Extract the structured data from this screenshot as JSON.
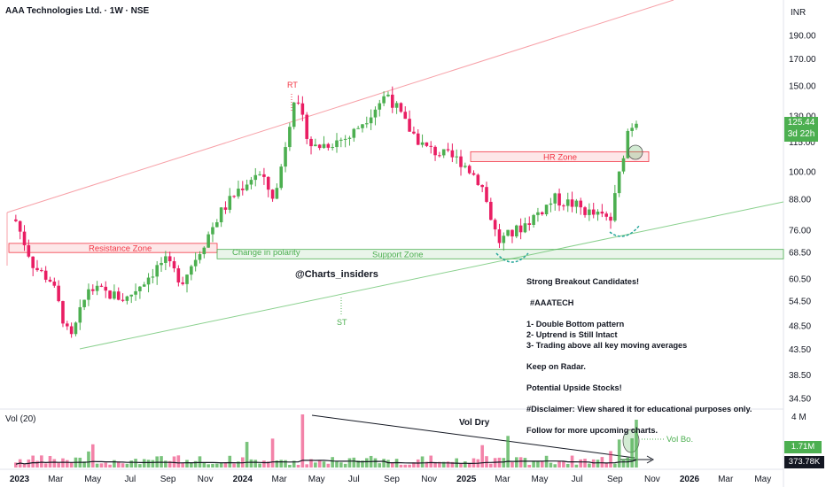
{
  "header": {
    "title": "AAA Technologies Ltd. · 1W · NSE",
    "currency": "INR",
    "volume_label": "Vol (20)"
  },
  "price_tag": {
    "price": "125.44",
    "countdown": "3d 22h"
  },
  "volume_tags": {
    "last": "1.71M",
    "average": "373.78K"
  },
  "colors": {
    "up": "#4caf50",
    "down": "#e91e63",
    "resistance": "#f23645",
    "support": "#4caf50"
  },
  "chart_data": {
    "type": "candlestick",
    "title": "AAA Technologies Ltd. · 1W · NSE",
    "y_axis_ticks": [
      190.0,
      170.0,
      150.0,
      130.0,
      115.0,
      100.0,
      88.0,
      76.0,
      68.5,
      60.5,
      54.5,
      48.5,
      43.5,
      38.5,
      34.5
    ],
    "y_scale": "log",
    "x_axis_ticks": [
      "2023",
      "Mar",
      "May",
      "Jul",
      "Sep",
      "Nov",
      "2024",
      "Mar",
      "May",
      "Jul",
      "Sep",
      "Nov",
      "2025",
      "Mar",
      "May",
      "Jul",
      "Sep",
      "Nov",
      "2026",
      "Mar",
      "May"
    ],
    "volume_axis_ticks": [
      "4 M"
    ],
    "approx_price_path": [
      {
        "date": "2023-01",
        "price": 80
      },
      {
        "date": "2023-02",
        "price": 64
      },
      {
        "date": "2023-03",
        "price": 60
      },
      {
        "date": "2023-04",
        "price": 45
      },
      {
        "date": "2023-05",
        "price": 58
      },
      {
        "date": "2023-07",
        "price": 55
      },
      {
        "date": "2023-09",
        "price": 66
      },
      {
        "date": "2023-10",
        "price": 60
      },
      {
        "date": "2023-11",
        "price": 70
      },
      {
        "date": "2023-12",
        "price": 82
      },
      {
        "date": "2024-01",
        "price": 92
      },
      {
        "date": "2024-02",
        "price": 100
      },
      {
        "date": "2024-03",
        "price": 88
      },
      {
        "date": "2024-04",
        "price": 142
      },
      {
        "date": "2024-05",
        "price": 112
      },
      {
        "date": "2024-07",
        "price": 118
      },
      {
        "date": "2024-09",
        "price": 145
      },
      {
        "date": "2024-10",
        "price": 125
      },
      {
        "date": "2024-11",
        "price": 112
      },
      {
        "date": "2025-01",
        "price": 105
      },
      {
        "date": "2025-02",
        "price": 95
      },
      {
        "date": "2025-03",
        "price": 72
      },
      {
        "date": "2025-04",
        "price": 76
      },
      {
        "date": "2025-06",
        "price": 88
      },
      {
        "date": "2025-07",
        "price": 86
      },
      {
        "date": "2025-08",
        "price": 82
      },
      {
        "date": "2025-09",
        "price": 80
      },
      {
        "date": "2025-10",
        "price": 125
      }
    ],
    "zones": [
      {
        "label": "Resistance Zone",
        "low": 68.5,
        "high": 71.5
      },
      {
        "label": "Support Zone",
        "low": 66.5,
        "high": 69.5
      },
      {
        "label": "HR Zone",
        "low": 105,
        "high": 110
      }
    ],
    "annotations": [
      "RT",
      "ST",
      "Change in polarity",
      "@Charts_insiders",
      "Vol Dry",
      "Vol Bo."
    ]
  },
  "notes": {
    "headline": "Strong Breakout Candidates!",
    "tag": "#AAATECH",
    "points": [
      "1- Double Bottom pattern",
      "2- Uptrend is Still Intact",
      "3- Trading above all key moving averages"
    ],
    "radar": "Keep on Radar.",
    "upside": "Potential Upside Stocks!",
    "disclaimer": "#Disclaimer: View shared it for educational purposes only.",
    "follow": "Follow for more upcoming charts."
  }
}
